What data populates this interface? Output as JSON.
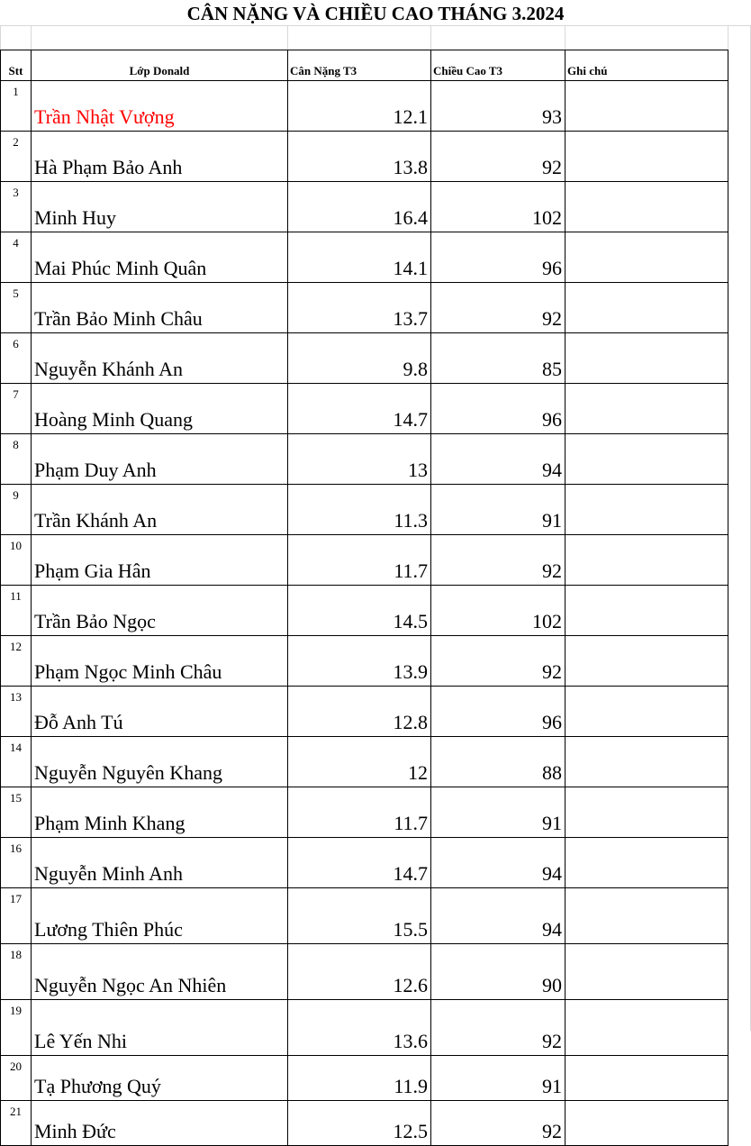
{
  "title": "CÂN NẶNG VÀ CHIỀU CAO THÁNG 3.2024",
  "headers": {
    "stt": "Stt",
    "name": "Lớp Donald",
    "weight": "Cân Nặng T3",
    "height": "Chiều Cao T3",
    "note": "Ghi chú"
  },
  "highlight_color": "#ff0000",
  "rows": [
    {
      "stt": "1",
      "name": "Trần Nhật Vượng",
      "weight": "12.1",
      "height": "93",
      "note": ""
    },
    {
      "stt": "2",
      "name": " Hà Phạm Bảo Anh",
      "weight": "13.8",
      "height": "92",
      "note": ""
    },
    {
      "stt": "3",
      "name": "Minh Huy",
      "weight": "16.4",
      "height": "102",
      "note": ""
    },
    {
      "stt": "4",
      "name": "Mai Phúc Minh Quân",
      "weight": "14.1",
      "height": "96",
      "note": ""
    },
    {
      "stt": "5",
      "name": "Trần Bảo Minh Châu",
      "weight": "13.7",
      "height": "92",
      "note": ""
    },
    {
      "stt": "6",
      "name": "Nguyễn Khánh An",
      "weight": "9.8",
      "height": "85",
      "note": ""
    },
    {
      "stt": "7",
      "name": "Hoàng Minh Quang",
      "weight": "14.7",
      "height": "96",
      "note": ""
    },
    {
      "stt": "8",
      "name": "Phạm Duy Anh",
      "weight": "13",
      "height": "94",
      "note": ""
    },
    {
      "stt": "9",
      "name": "Trần Khánh An",
      "weight": "11.3",
      "height": "91",
      "note": ""
    },
    {
      "stt": "10",
      "name": "Phạm Gia Hân",
      "weight": "11.7",
      "height": "92",
      "note": ""
    },
    {
      "stt": "11",
      "name": "Trần Bảo Ngọc",
      "weight": "14.5",
      "height": "102",
      "note": ""
    },
    {
      "stt": "12",
      "name": "Phạm Ngọc Minh Châu",
      "weight": "13.9",
      "height": "92",
      "note": ""
    },
    {
      "stt": "13",
      "name": "Đỗ Anh Tú",
      "weight": "12.8",
      "height": "96",
      "note": ""
    },
    {
      "stt": "14",
      "name": "Nguyễn Nguyên Khang",
      "weight": "12",
      "height": "88",
      "note": ""
    },
    {
      "stt": "15",
      "name": "Phạm Minh Khang",
      "weight": "11.7",
      "height": "91",
      "note": ""
    },
    {
      "stt": "16",
      "name": "Nguyễn Minh Anh",
      "weight": "14.7",
      "height": "94",
      "note": ""
    },
    {
      "stt": "17",
      "name": "Lương Thiên Phúc",
      "weight": "15.5",
      "height": "94",
      "note": ""
    },
    {
      "stt": "18",
      "name": "Nguyễn Ngọc An Nhiên",
      "weight": "12.6",
      "height": "90",
      "note": ""
    },
    {
      "stt": "19",
      "name": "Lê Yến Nhi",
      "weight": "13.6",
      "height": "92",
      "note": ""
    },
    {
      "stt": "20",
      "name": "Tạ Phương Quý",
      "weight": "11.9",
      "height": "91",
      "note": ""
    },
    {
      "stt": "21",
      "name": "Minh Đức",
      "weight": "12.5",
      "height": "92",
      "note": ""
    }
  ]
}
